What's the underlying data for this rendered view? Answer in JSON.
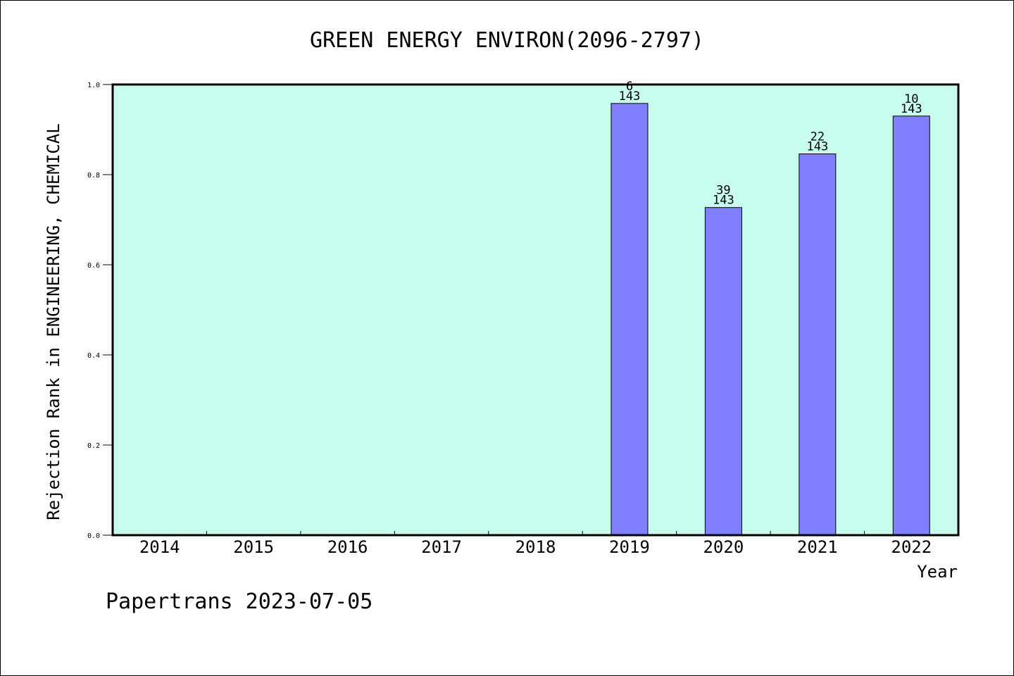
{
  "chart_data": {
    "type": "bar",
    "title": "GREEN ENERGY ENVIRON(2096-2797)",
    "xlabel": "Year",
    "ylabel": "Rejection Rank in ENGINEERING, CHEMICAL",
    "categories": [
      "2014",
      "2015",
      "2016",
      "2017",
      "2018",
      "2019",
      "2020",
      "2021",
      "2022"
    ],
    "values": [
      null,
      null,
      null,
      null,
      null,
      0.958,
      0.727,
      0.846,
      0.93
    ],
    "bar_labels": [
      null,
      null,
      null,
      null,
      null,
      {
        "rank": "6",
        "total": "143"
      },
      {
        "rank": "39",
        "total": "143"
      },
      {
        "rank": "22",
        "total": "143"
      },
      {
        "rank": "10",
        "total": "143"
      }
    ],
    "ylim": [
      0,
      1.0
    ],
    "yticks": [
      "0.0",
      "0.2",
      "0.4",
      "0.6",
      "0.8",
      "1.0"
    ],
    "grid": false,
    "colors": {
      "plot_background": "#c8fcee",
      "bar_fill": "#8080ff",
      "bar_stroke": "#000000"
    }
  },
  "footer": "Papertrans 2023-07-05"
}
